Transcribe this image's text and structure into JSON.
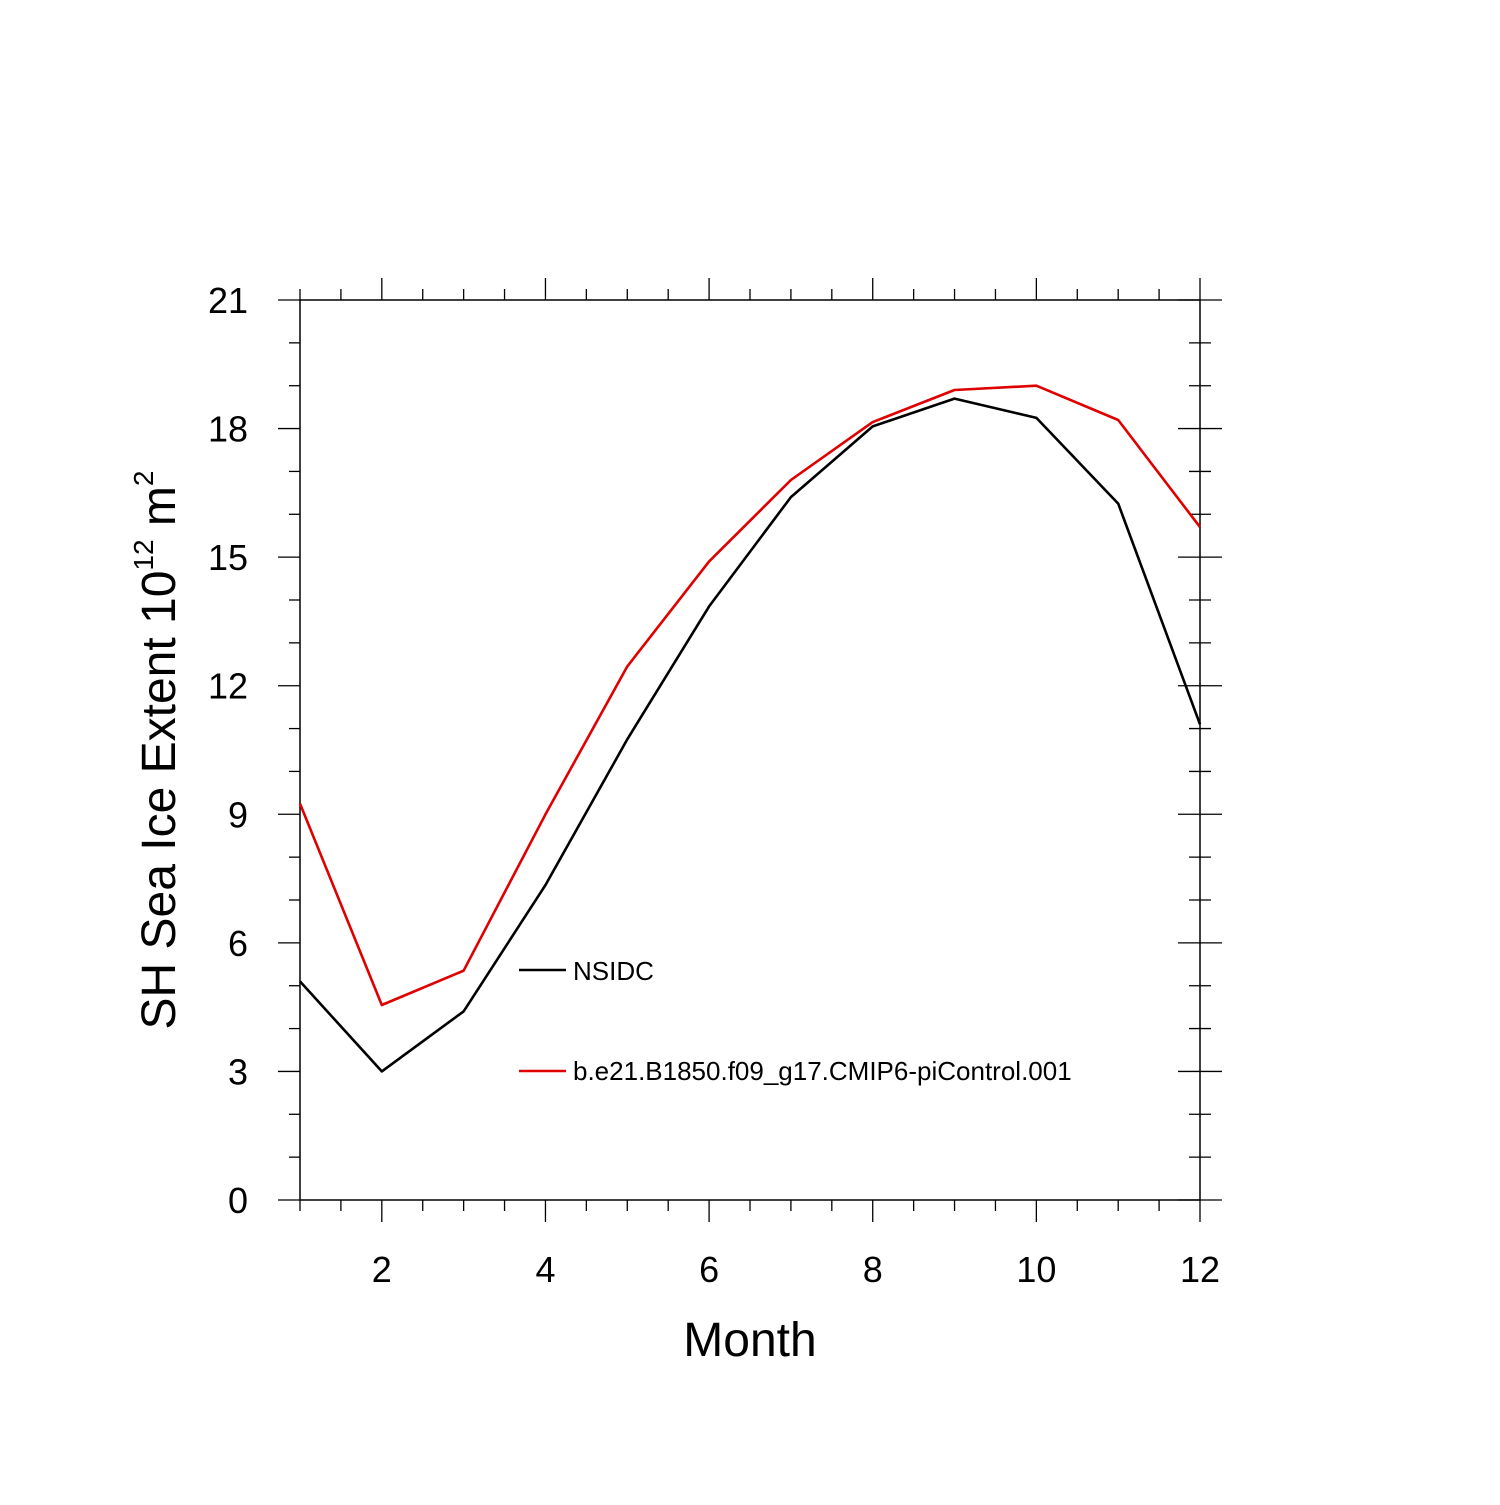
{
  "chart_data": {
    "type": "line",
    "title": "",
    "xlabel": "Month",
    "ylabel": {
      "main": "SH Sea Ice Extent 10",
      "superscript1": "12",
      "unit": " m",
      "superscript2": "2"
    },
    "xlim": [
      1,
      12
    ],
    "ylim": [
      0,
      21
    ],
    "x_ticks": [
      2,
      4,
      6,
      8,
      10,
      12
    ],
    "y_ticks": [
      0,
      3,
      6,
      9,
      12,
      15,
      18,
      21
    ],
    "grid": false,
    "legend_position": "center",
    "x": [
      1,
      2,
      3,
      4,
      5,
      6,
      7,
      8,
      9,
      10,
      11,
      12
    ],
    "series": [
      {
        "name": "NSIDC",
        "color": "#000000",
        "values": [
          5.1,
          3.0,
          4.4,
          7.35,
          10.75,
          13.85,
          16.4,
          18.05,
          18.7,
          18.25,
          16.25,
          11.1
        ]
      },
      {
        "name": "b.e21.B1850.f09_g17.CMIP6-piControl.001",
        "color": "#e00000",
        "values": [
          9.25,
          4.55,
          5.35,
          9.0,
          12.45,
          14.9,
          16.8,
          18.15,
          18.9,
          19.0,
          18.2,
          15.7
        ]
      }
    ]
  }
}
